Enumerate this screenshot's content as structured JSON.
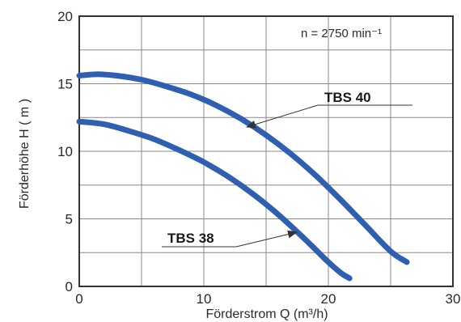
{
  "chart_data": {
    "type": "line",
    "title": "",
    "xlabel": "Förderstrom Q (m³/h)",
    "ylabel": "Förderhöhe H ( m )",
    "xlim": [
      0,
      30
    ],
    "ylim": [
      0,
      20
    ],
    "x_ticks": [
      0,
      10,
      20,
      30
    ],
    "y_ticks": [
      0,
      5,
      10,
      15,
      20
    ],
    "grid": true,
    "annotation": "n = 2750 min⁻¹",
    "colors": {
      "series": "#2f5fb0",
      "grid": "#888888",
      "axis": "#333333",
      "pointer": "#333333"
    },
    "series": [
      {
        "name": "TBS 40",
        "x": [
          0,
          1.5,
          3,
          5,
          7,
          9,
          11,
          13,
          15,
          17,
          19,
          21,
          23,
          25,
          26.3
        ],
        "y": [
          15.6,
          15.7,
          15.6,
          15.3,
          14.8,
          14.2,
          13.4,
          12.4,
          11.2,
          9.8,
          8.2,
          6.4,
          4.5,
          2.6,
          1.8
        ]
      },
      {
        "name": "TBS 38",
        "x": [
          0,
          2,
          4,
          6,
          8,
          10,
          12,
          14,
          16,
          18,
          19,
          20,
          21,
          21.7
        ],
        "y": [
          12.2,
          12.0,
          11.5,
          10.9,
          10.1,
          9.2,
          8.1,
          6.8,
          5.3,
          3.6,
          2.7,
          1.8,
          1.0,
          0.6
        ]
      }
    ],
    "pointers": [
      {
        "series": "TBS 40",
        "text_anchor": [
          24.5,
          13.8
        ],
        "target": [
          13.3,
          11.8
        ]
      },
      {
        "series": "TBS 38",
        "text_anchor": [
          17.4,
          2.9
        ],
        "target": [
          17.8,
          3.8
        ]
      }
    ]
  }
}
